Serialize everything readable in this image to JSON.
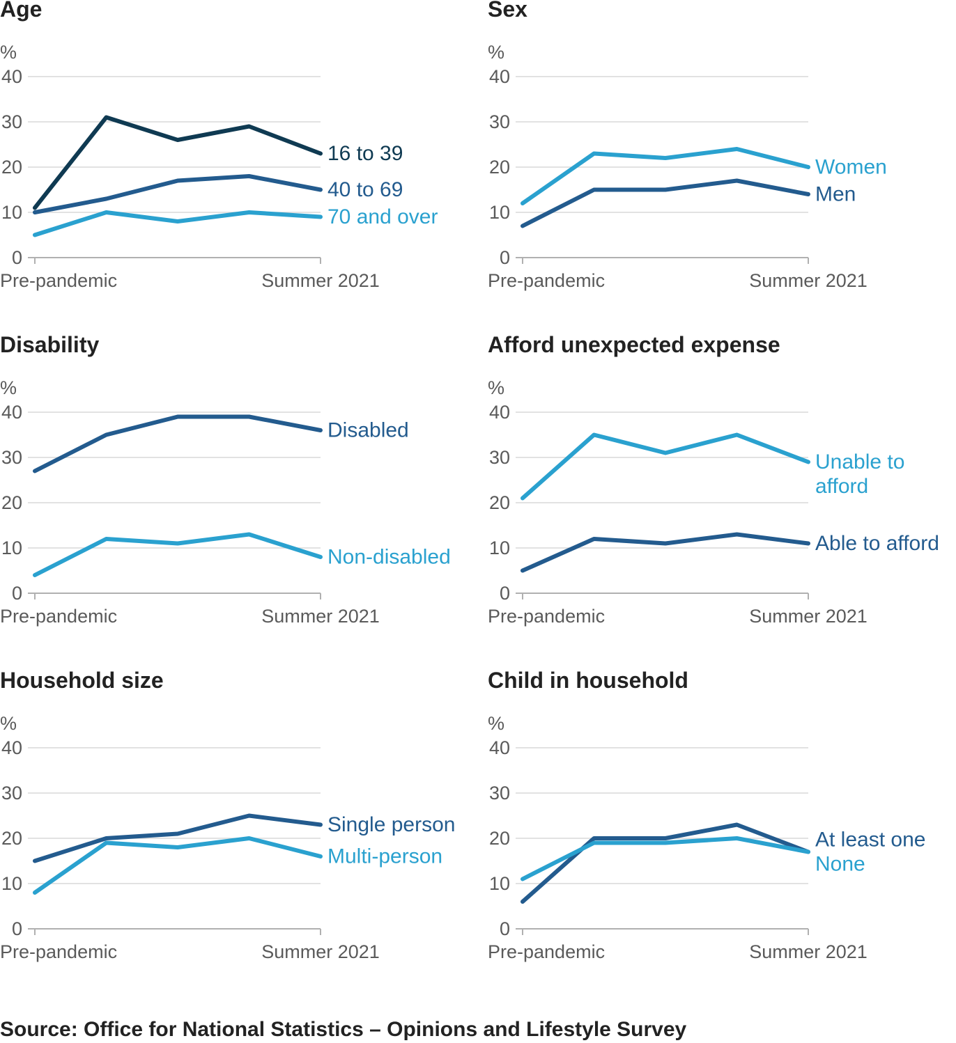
{
  "colors": {
    "dark_navy": "#0f3a52",
    "mid_blue": "#235b8e",
    "light_blue": "#2aa1cf",
    "axis_text": "#5a5a5a",
    "title_text": "#222222",
    "grid": "#d9d9d9"
  },
  "source": "Source: Office for National Statistics – Opinions and Lifestyle Survey",
  "chart_data": [
    {
      "type": "line",
      "title": "Age",
      "ylabel": "%",
      "ylim": [
        0,
        40
      ],
      "yticks": [
        "0",
        "10",
        "20",
        "30",
        "40"
      ],
      "x_labels": [
        "Pre-pandemic",
        "Summer 2021"
      ],
      "grid": true,
      "series": [
        {
          "name": "16 to 39",
          "color": "#0f3a52",
          "values": [
            11,
            31,
            26,
            29,
            23
          ],
          "label_lines": [
            "16 to 39"
          ]
        },
        {
          "name": "40 to 69",
          "color": "#235b8e",
          "values": [
            10,
            13,
            17,
            18,
            15
          ],
          "label_lines": [
            "40 to 69"
          ]
        },
        {
          "name": "70 and over",
          "color": "#2aa1cf",
          "values": [
            5,
            10,
            8,
            10,
            9
          ],
          "label_lines": [
            "70 and over"
          ]
        }
      ]
    },
    {
      "type": "line",
      "title": "Sex",
      "ylabel": "%",
      "ylim": [
        0,
        40
      ],
      "yticks": [
        "0",
        "10",
        "20",
        "30",
        "40"
      ],
      "x_labels": [
        "Pre-pandemic",
        "Summer 2021"
      ],
      "grid": true,
      "series": [
        {
          "name": "Women",
          "color": "#2aa1cf",
          "values": [
            12,
            23,
            22,
            24,
            20
          ],
          "label_lines": [
            "Women"
          ]
        },
        {
          "name": "Men",
          "color": "#235b8e",
          "values": [
            7,
            15,
            15,
            17,
            14
          ],
          "label_lines": [
            "Men"
          ]
        }
      ]
    },
    {
      "type": "line",
      "title": "Disability",
      "ylabel": "%",
      "ylim": [
        0,
        40
      ],
      "yticks": [
        "0",
        "10",
        "20",
        "30",
        "40"
      ],
      "x_labels": [
        "Pre-pandemic",
        "Summer 2021"
      ],
      "grid": true,
      "series": [
        {
          "name": "Disabled",
          "color": "#235b8e",
          "values": [
            27,
            35,
            39,
            39,
            36
          ],
          "label_lines": [
            "Disabled"
          ]
        },
        {
          "name": "Non-disabled",
          "color": "#2aa1cf",
          "values": [
            4,
            12,
            11,
            13,
            8
          ],
          "label_lines": [
            "Non-disabled"
          ]
        }
      ]
    },
    {
      "type": "line",
      "title": "Afford unexpected expense",
      "ylabel": "%",
      "ylim": [
        0,
        40
      ],
      "yticks": [
        "0",
        "10",
        "20",
        "30",
        "40"
      ],
      "x_labels": [
        "Pre-pandemic",
        "Summer 2021"
      ],
      "grid": true,
      "series": [
        {
          "name": "Unable to afford",
          "color": "#2aa1cf",
          "values": [
            21,
            35,
            31,
            35,
            29
          ],
          "label_lines": [
            "Unable to",
            "afford"
          ]
        },
        {
          "name": "Able to afford",
          "color": "#235b8e",
          "values": [
            5,
            12,
            11,
            13,
            11
          ],
          "label_lines": [
            "Able to afford"
          ]
        }
      ]
    },
    {
      "type": "line",
      "title": "Household size",
      "ylabel": "%",
      "ylim": [
        0,
        40
      ],
      "yticks": [
        "0",
        "10",
        "20",
        "30",
        "40"
      ],
      "x_labels": [
        "Pre-pandemic",
        "Summer 2021"
      ],
      "grid": true,
      "series": [
        {
          "name": "Single person",
          "color": "#235b8e",
          "values": [
            15,
            20,
            21,
            25,
            23
          ],
          "label_lines": [
            "Single person"
          ]
        },
        {
          "name": "Multi-person",
          "color": "#2aa1cf",
          "values": [
            8,
            19,
            18,
            20,
            16
          ],
          "label_lines": [
            "Multi-person"
          ]
        }
      ]
    },
    {
      "type": "line",
      "title": "Child in household",
      "ylabel": "%",
      "ylim": [
        0,
        40
      ],
      "yticks": [
        "0",
        "10",
        "20",
        "30",
        "40"
      ],
      "x_labels": [
        "Pre-pandemic",
        "Summer 2021"
      ],
      "grid": true,
      "series": [
        {
          "name": "At least one",
          "color": "#235b8e",
          "values": [
            6,
            20,
            20,
            23,
            17
          ],
          "label_lines": [
            "At least one"
          ]
        },
        {
          "name": "None",
          "color": "#2aa1cf",
          "values": [
            11,
            19,
            19,
            20,
            17
          ],
          "label_lines": [
            "None"
          ]
        }
      ]
    }
  ]
}
